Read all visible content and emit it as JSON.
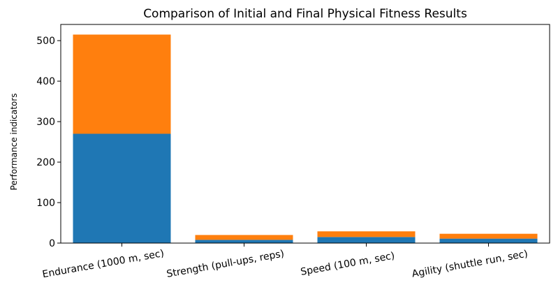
{
  "chart_data": {
    "type": "bar",
    "stacked": true,
    "title": "Comparison of Initial and Final Physical Fitness Results",
    "xlabel": "",
    "ylabel": "Performance indicators",
    "categories": [
      "Endurance (1000 m, sec)",
      "Strength (pull-ups, reps)",
      "Speed (100 m, sec)",
      "Agility (shuttle run, sec)"
    ],
    "series": [
      {
        "values": [
          270,
          8,
          15,
          11
        ],
        "color": "#1f77b4"
      },
      {
        "values": [
          245,
          12,
          14,
          12
        ],
        "color": "#ff7f0e"
      }
    ],
    "ylim": [
      0,
      540
    ],
    "yticks": [
      0,
      100,
      200,
      300,
      400,
      500
    ],
    "grid": false,
    "legend": "none"
  }
}
